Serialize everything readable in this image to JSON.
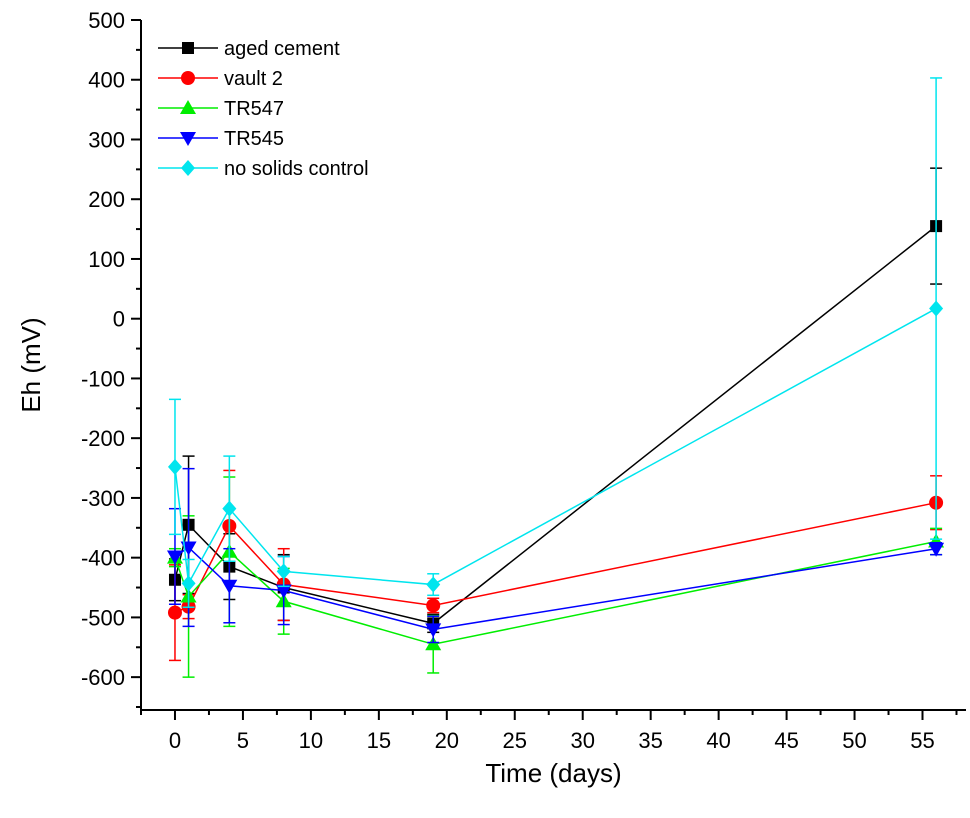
{
  "chart_data": {
    "type": "scatter",
    "title": "",
    "xlabel": "Time (days)",
    "ylabel": "Eh (mV)",
    "xlim": [
      -2.5,
      58.2
    ],
    "ylim": [
      -655,
      500
    ],
    "x_ticks": [
      "0",
      "5",
      "10",
      "15",
      "20",
      "25",
      "30",
      "35",
      "40",
      "45",
      "50",
      "55"
    ],
    "y_ticks": [
      "500",
      "400",
      "300",
      "200",
      "100",
      "0",
      "-100",
      "-200",
      "-300",
      "-400",
      "-500",
      "-600"
    ],
    "legend_position": "top-left",
    "grid": false,
    "series": [
      {
        "name": "aged cement",
        "color": "#000000",
        "marker": "square",
        "x": [
          0,
          1,
          4,
          8,
          19,
          56
        ],
        "y": [
          -437,
          -345,
          -415,
          -450,
          -510,
          155
        ],
        "err": [
          35,
          115,
          55,
          55,
          15,
          97
        ]
      },
      {
        "name": "vault 2",
        "color": "#ff0000",
        "marker": "circle",
        "x": [
          0,
          1,
          4,
          8,
          19,
          56
        ],
        "y": [
          -492,
          -482,
          -347,
          -445,
          -480,
          -308
        ],
        "err": [
          80,
          20,
          93,
          60,
          12,
          45
        ]
      },
      {
        "name": "TR547",
        "color": "#00ee00",
        "marker": "triangle-up",
        "x": [
          0,
          1,
          4,
          8,
          19,
          56
        ],
        "y": [
          -400,
          -465,
          -390,
          -473,
          -545,
          -373
        ],
        "err": [
          15,
          135,
          125,
          55,
          48,
          22
        ]
      },
      {
        "name": "TR545",
        "color": "#0000ff",
        "marker": "triangle-down",
        "x": [
          0,
          1,
          4,
          8,
          19,
          56
        ],
        "y": [
          -398,
          -383,
          -447,
          -455,
          -520,
          -385
        ],
        "err": [
          80,
          132,
          62,
          57,
          22,
          10
        ]
      },
      {
        "name": "no solids control",
        "color": "#00e5ee",
        "marker": "diamond",
        "x": [
          0,
          1,
          4,
          8,
          19,
          56
        ],
        "y": [
          -248,
          -443,
          -318,
          -423,
          -445,
          17
        ],
        "err": [
          113,
          40,
          88,
          25,
          18,
          386
        ]
      }
    ]
  }
}
